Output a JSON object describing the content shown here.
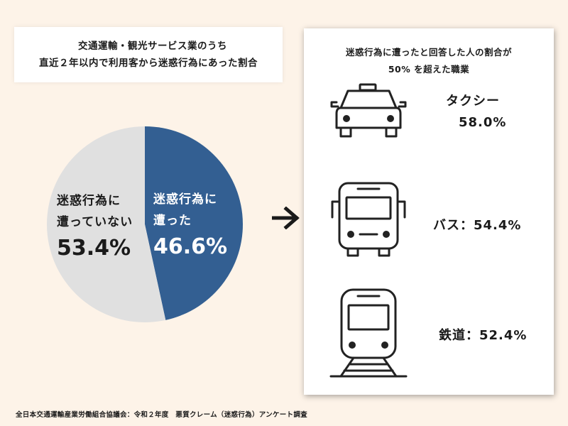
{
  "left_title": {
    "line1": "交通運輸・観光サービス業のうち",
    "line2": "直近２年以内で利用客から迷惑行為にあった割合"
  },
  "chart_data": {
    "type": "pie",
    "title": "交通運輸・観光サービス業のうち 直近２年以内で利用客から迷惑行為にあった割合",
    "slices": [
      {
        "label": "迷惑行為に遭った",
        "value": 46.6,
        "color": "#335f92"
      },
      {
        "label": "迷惑行為に遭っていない",
        "value": 53.4,
        "color": "#e0e0e0"
      }
    ],
    "start": "12 o'clock",
    "direction": "clockwise"
  },
  "pie_labels": {
    "yes_line1": "迷惑行為に",
    "yes_line2": "遭った",
    "yes_pct": "46.6%",
    "not_line1": "迷惑行為に",
    "not_line2": "遭っていない",
    "not_pct": "53.4%"
  },
  "panel": {
    "title_line1": "迷惑行為に遭ったと回答した人の割合が",
    "title_line2": "50% を超えた職業",
    "items": [
      {
        "icon": "taxi-icon",
        "label": "タクシー",
        "value": "58.0%"
      },
      {
        "icon": "bus-icon",
        "text": "バス：54.4%"
      },
      {
        "icon": "train-icon",
        "text": "鉄道：52.4%"
      }
    ]
  },
  "footer": "全日本交通運輸産業労働組合協議会：令和２年度　悪質クレーム（迷惑行為）アンケート調査"
}
